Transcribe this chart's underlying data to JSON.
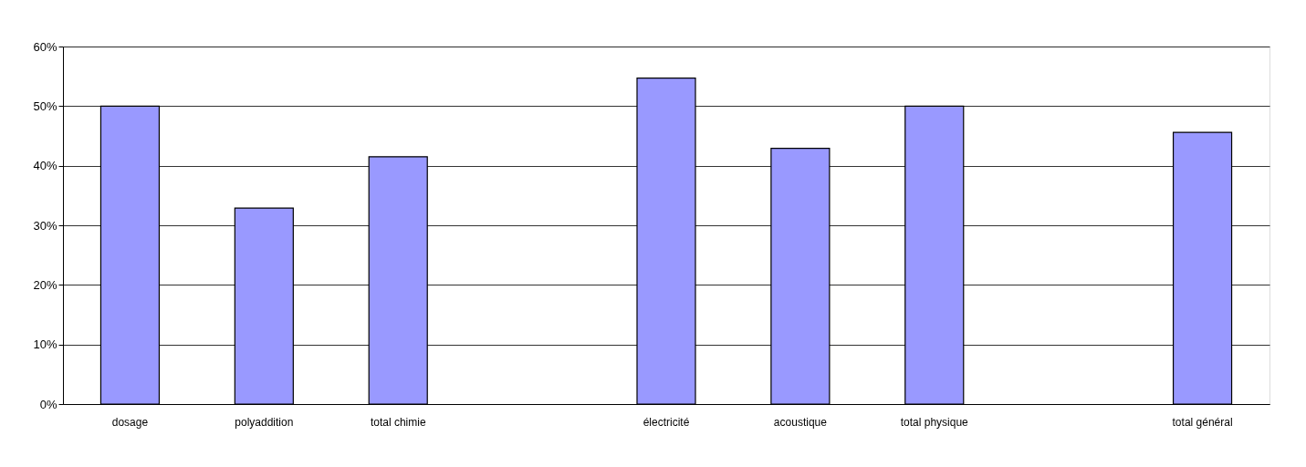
{
  "chart_data": {
    "type": "bar",
    "categories": [
      "dosage",
      "polyaddition",
      "total chimie",
      null,
      "électricité",
      "acoustique",
      "total physique",
      null,
      "total général"
    ],
    "values": [
      50,
      32.9,
      41.5,
      null,
      54.7,
      42.9,
      50,
      null,
      45.6
    ],
    "color": "#9999ff",
    "ylim": [
      0,
      60
    ],
    "yticks": [
      {
        "value": 0,
        "label": "0%"
      },
      {
        "value": 10,
        "label": "10%"
      },
      {
        "value": 20,
        "label": "20%"
      },
      {
        "value": 30,
        "label": "30%"
      },
      {
        "value": 40,
        "label": "40%"
      },
      {
        "value": 50,
        "label": "50%"
      },
      {
        "value": 60,
        "label": "60%"
      }
    ],
    "grid": "y"
  }
}
